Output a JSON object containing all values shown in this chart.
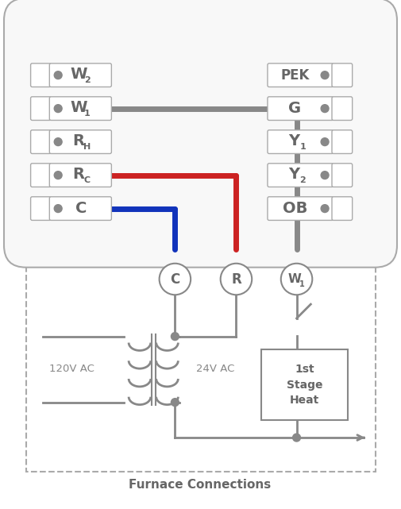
{
  "bg": "#ffffff",
  "gray": "#888888",
  "red": "#cc2222",
  "blue": "#1133bb",
  "lgray": "#aaaaaa",
  "dgray": "#666666",
  "lw_wire": 5.0,
  "lw_line": 2.0,
  "left_labels_base": [
    "W",
    "W",
    "R",
    "R",
    "C"
  ],
  "left_labels_sub": [
    "2",
    "1",
    "H",
    "C",
    ""
  ],
  "right_labels_base": [
    "PEK",
    "G",
    "Y",
    "Y",
    "OB"
  ],
  "right_labels_sub": [
    "",
    "",
    "1",
    "2",
    ""
  ],
  "furnace_label": "Furnace Connections",
  "ac_left": "120V AC",
  "ac_right": "24V AC",
  "heat_box_text": "1st\nStage\nHeat"
}
